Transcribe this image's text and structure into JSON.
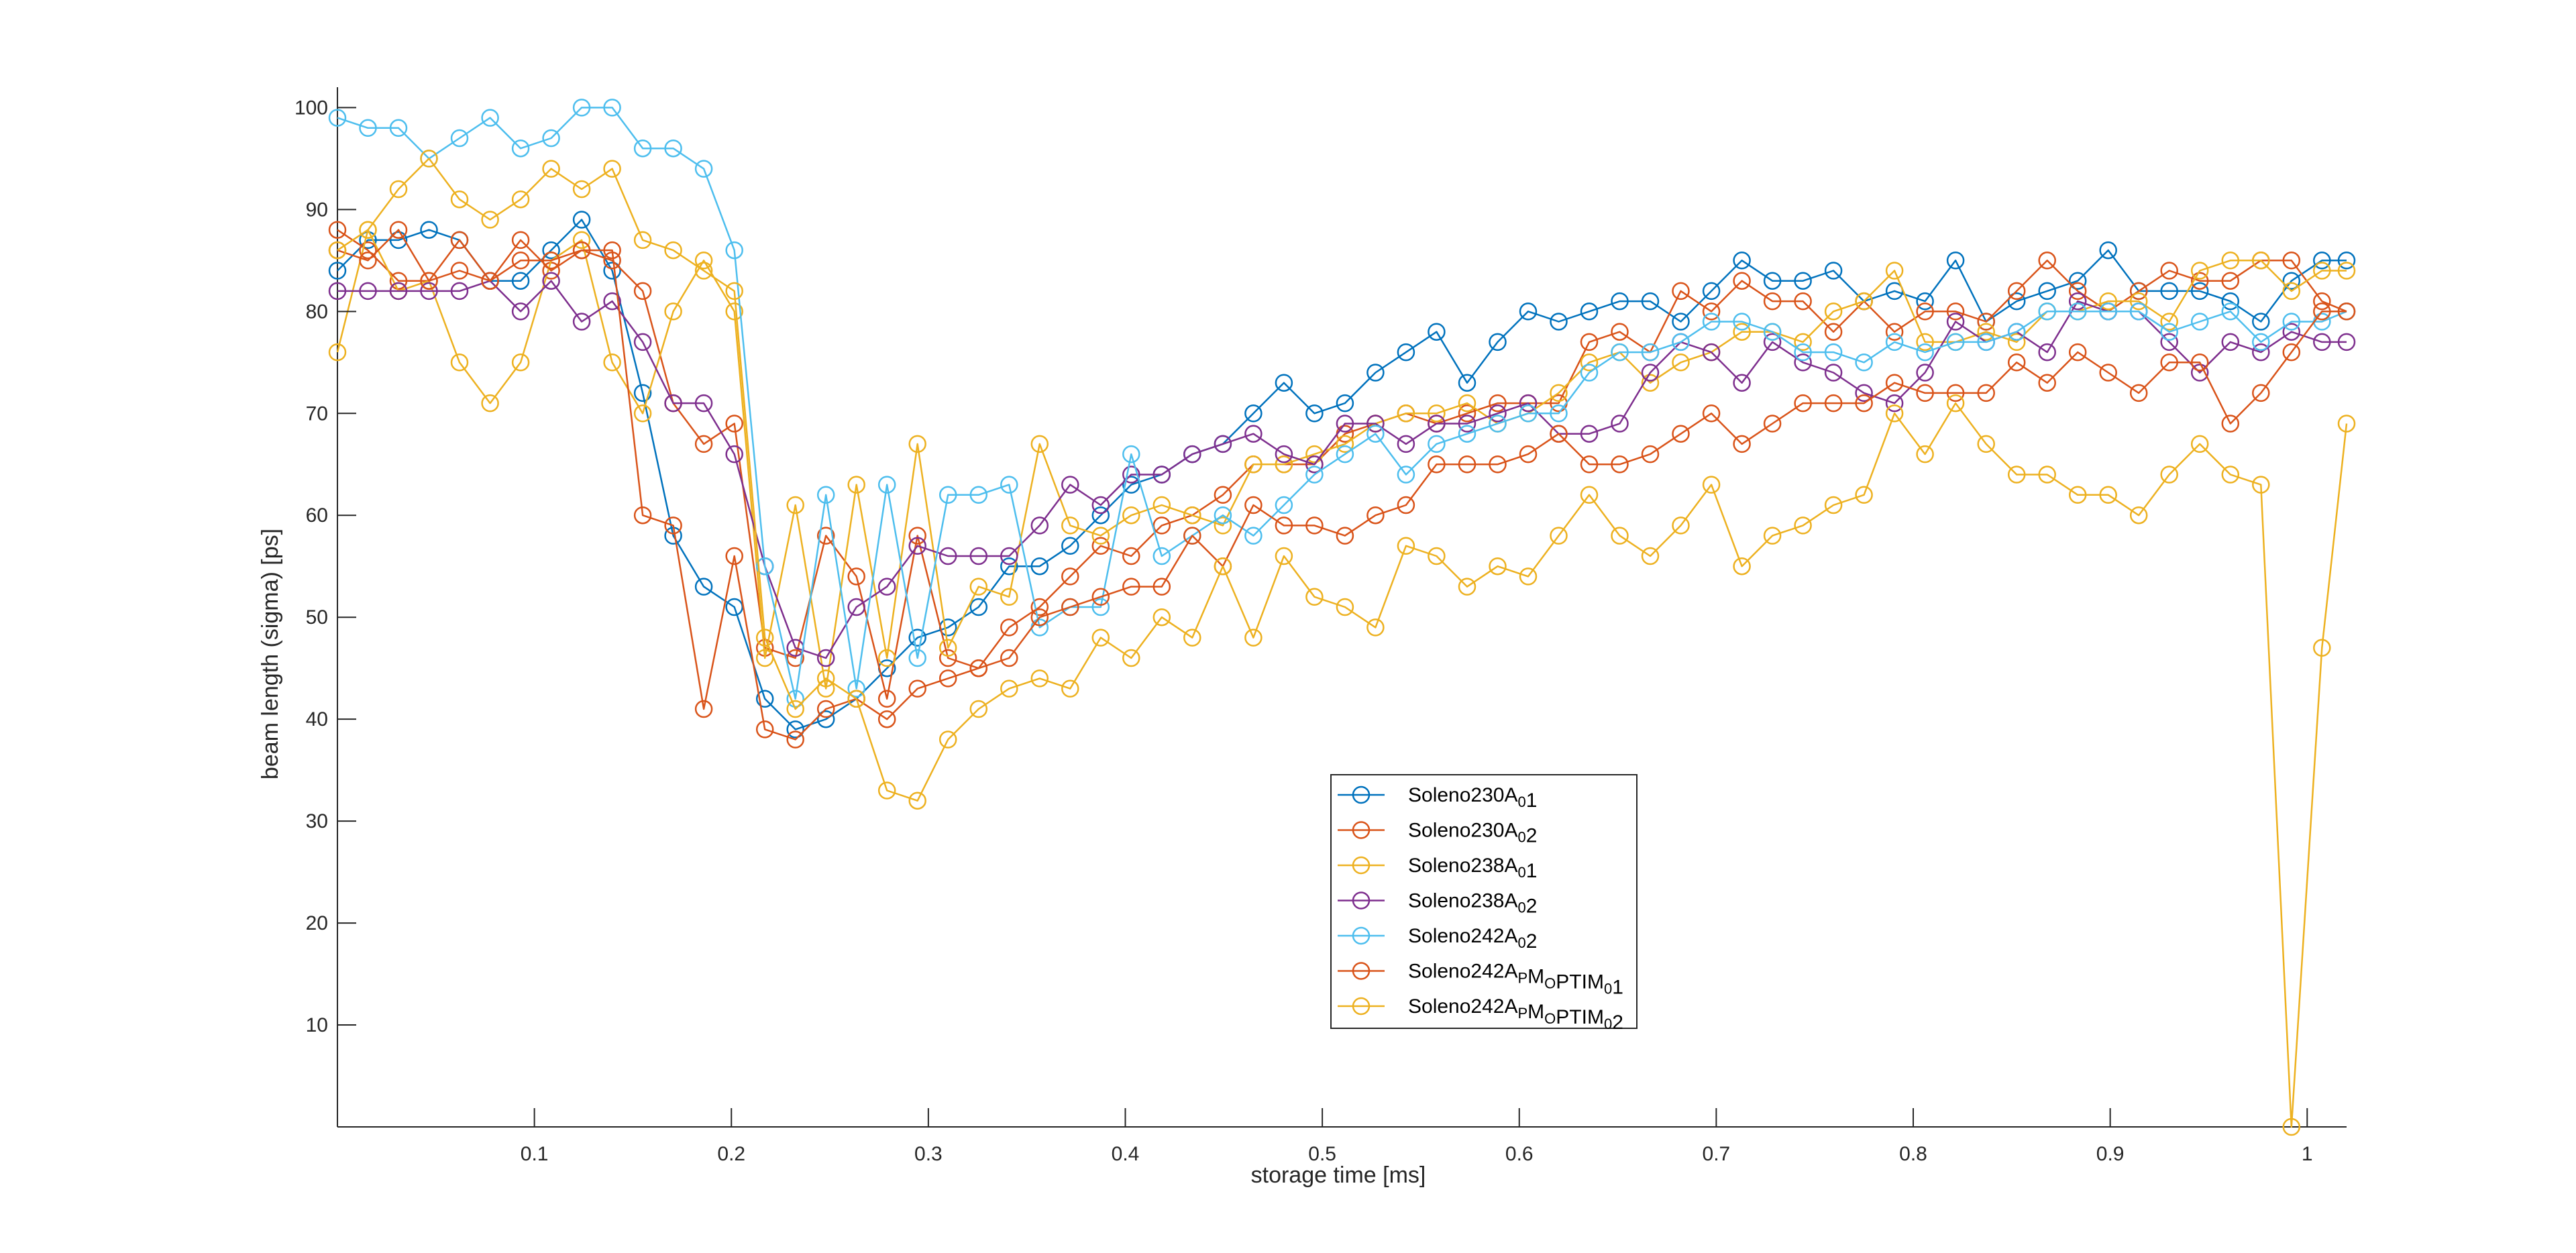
{
  "chart_data": {
    "type": "line",
    "xlabel": "storage time [ms]",
    "ylabel": "beam length (sigma) [ps]",
    "xlim": [
      0.0,
      1.02
    ],
    "ylim": [
      0,
      102
    ],
    "xticks": [
      0.1,
      0.2,
      0.3,
      0.4,
      0.5,
      0.6,
      0.7,
      0.8,
      0.9,
      1
    ],
    "xtick_labels": [
      "0.1",
      "0.2",
      "0.3",
      "0.4",
      "0.5",
      "0.6",
      "0.7",
      "0.8",
      "0.9",
      "1"
    ],
    "yticks": [
      10,
      20,
      30,
      40,
      50,
      60,
      70,
      80,
      90,
      100
    ],
    "ytick_labels": [
      "10",
      "20",
      "30",
      "40",
      "50",
      "60",
      "70",
      "80",
      "90",
      "100"
    ],
    "marker": "circle",
    "grid": false,
    "legend_position": "bottom-center",
    "x": [
      0.0,
      0.0155,
      0.031,
      0.0465,
      0.062,
      0.0775,
      0.093,
      0.1085,
      0.124,
      0.1395,
      0.155,
      0.1705,
      0.186,
      0.2015,
      0.217,
      0.2325,
      0.248,
      0.2635,
      0.279,
      0.2945,
      0.31,
      0.3255,
      0.341,
      0.3565,
      0.372,
      0.3875,
      0.403,
      0.4185,
      0.434,
      0.4495,
      0.465,
      0.4805,
      0.496,
      0.5115,
      0.527,
      0.5425,
      0.558,
      0.5735,
      0.589,
      0.6045,
      0.62,
      0.6355,
      0.651,
      0.6665,
      0.682,
      0.6975,
      0.713,
      0.7285,
      0.744,
      0.7595,
      0.775,
      0.7905,
      0.806,
      0.8215,
      0.837,
      0.8525,
      0.868,
      0.8835,
      0.899,
      0.9145,
      0.93,
      0.9455,
      0.961,
      0.9765,
      0.992,
      1.0075,
      1.02
    ],
    "series": [
      {
        "name": "Soleno230A",
        "sub": "0",
        "suffix": "1",
        "color": "#0072BD",
        "values": [
          84,
          87,
          87,
          88,
          87,
          83,
          83,
          86,
          89,
          84,
          72,
          58,
          53,
          51,
          42,
          39,
          40,
          42,
          45,
          48,
          49,
          51,
          55,
          55,
          57,
          60,
          63,
          64,
          66,
          67,
          70,
          73,
          70,
          71,
          74,
          76,
          78,
          73,
          77,
          80,
          79,
          80,
          81,
          81,
          79,
          82,
          85,
          83,
          83,
          84,
          81,
          82,
          81,
          85,
          79,
          81,
          82,
          83,
          86,
          82,
          82,
          82,
          81,
          79,
          83,
          85,
          85
        ]
      },
      {
        "name": "Soleno230A",
        "sub": "0",
        "suffix": "2",
        "color": "#D95319",
        "values": [
          88,
          86,
          83,
          83,
          87,
          83,
          87,
          84,
          86,
          85,
          82,
          71,
          67,
          69,
          47,
          46,
          58,
          54,
          42,
          58,
          46,
          45,
          49,
          51,
          54,
          57,
          56,
          59,
          60,
          62,
          65,
          65,
          65,
          68,
          69,
          70,
          69,
          70,
          71,
          71,
          71,
          77,
          78,
          76,
          82,
          80,
          83,
          81,
          81,
          78,
          81,
          78,
          80,
          80,
          79,
          82,
          85,
          82,
          80,
          82,
          84,
          83,
          83,
          85,
          85,
          81,
          80
        ]
      },
      {
        "name": "Soleno238A",
        "sub": "0",
        "suffix": "1",
        "color": "#EDB120",
        "values": [
          76,
          88,
          82,
          83,
          75,
          71,
          75,
          85,
          87,
          75,
          70,
          80,
          85,
          80,
          46,
          61,
          43,
          63,
          46,
          67,
          47,
          53,
          52,
          67,
          59,
          58,
          60,
          61,
          60,
          59,
          65,
          65,
          66,
          67,
          69,
          70,
          70,
          71,
          69,
          70,
          72,
          75,
          76,
          73,
          75,
          76,
          78,
          78,
          77,
          80,
          81,
          84,
          77,
          77,
          78,
          77,
          80,
          80,
          81,
          81,
          79,
          84,
          85,
          85,
          82,
          84,
          84
        ]
      },
      {
        "name": "Soleno238A",
        "sub": "0",
        "suffix": "2",
        "color": "#7E2F8E",
        "values": [
          82,
          82,
          82,
          82,
          82,
          83,
          80,
          83,
          79,
          81,
          77,
          71,
          71,
          66,
          55,
          47,
          46,
          51,
          53,
          57,
          56,
          56,
          56,
          59,
          63,
          61,
          64,
          64,
          66,
          67,
          68,
          66,
          65,
          69,
          69,
          67,
          69,
          69,
          70,
          71,
          68,
          68,
          69,
          74,
          77,
          76,
          73,
          77,
          75,
          74,
          72,
          71,
          74,
          79,
          77,
          78,
          76,
          81,
          80,
          80,
          77,
          74,
          77,
          76,
          78,
          77,
          77
        ]
      },
      {
        "name": "Soleno242A",
        "sub": "0",
        "suffix": "2",
        "color": "#4DBEEE",
        "values": [
          99,
          98,
          98,
          95,
          97,
          99,
          96,
          97,
          100,
          100,
          96,
          96,
          94,
          86,
          55,
          42,
          62,
          43,
          63,
          46,
          62,
          62,
          63,
          49,
          51,
          51,
          66,
          56,
          58,
          60,
          58,
          61,
          64,
          66,
          68,
          64,
          67,
          68,
          69,
          70,
          70,
          74,
          76,
          76,
          77,
          79,
          79,
          78,
          76,
          76,
          75,
          77,
          76,
          77,
          77,
          78,
          80,
          80,
          80,
          80,
          78,
          79,
          80,
          77,
          79,
          79,
          80
        ]
      },
      {
        "name": "Soleno242A",
        "sub": "P",
        "mid": "M",
        "sub2": "O",
        "mid2": "PTIM",
        "sub3": "0",
        "suffix": "1",
        "color": "#D95319",
        "values": [
          86,
          85,
          88,
          83,
          84,
          83,
          85,
          85,
          86,
          86,
          60,
          59,
          41,
          56,
          39,
          38,
          41,
          42,
          40,
          43,
          44,
          45,
          46,
          50,
          51,
          52,
          53,
          53,
          58,
          55,
          61,
          59,
          59,
          58,
          60,
          61,
          65,
          65,
          65,
          66,
          68,
          65,
          65,
          66,
          68,
          70,
          67,
          69,
          71,
          71,
          71,
          73,
          72,
          72,
          72,
          75,
          73,
          76,
          74,
          72,
          75,
          75,
          69,
          72,
          76,
          80,
          80
        ]
      },
      {
        "name": "Soleno242A",
        "sub": "P",
        "mid": "M",
        "sub2": "O",
        "mid2": "PTIM",
        "sub3": "0",
        "suffix": "2",
        "color": "#EDB120",
        "values": [
          86,
          88,
          92,
          95,
          91,
          89,
          91,
          94,
          92,
          94,
          87,
          86,
          84,
          82,
          48,
          41,
          44,
          42,
          33,
          32,
          38,
          41,
          43,
          44,
          43,
          48,
          46,
          50,
          48,
          55,
          48,
          56,
          52,
          51,
          49,
          57,
          56,
          53,
          55,
          54,
          58,
          62,
          58,
          56,
          59,
          63,
          55,
          58,
          59,
          61,
          62,
          70,
          66,
          71,
          67,
          64,
          64,
          62,
          62,
          60,
          64,
          67,
          64,
          63,
          0,
          47,
          69
        ]
      }
    ]
  }
}
